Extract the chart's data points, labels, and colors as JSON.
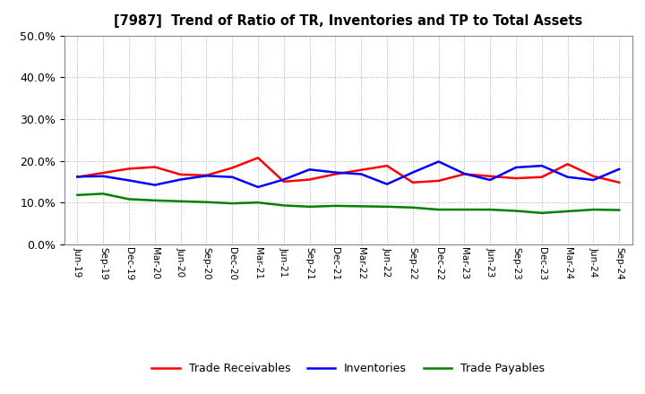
{
  "title": "[7987]  Trend of Ratio of TR, Inventories and TP to Total Assets",
  "ylim": [
    0.0,
    0.5
  ],
  "yticks": [
    0.0,
    0.1,
    0.2,
    0.3,
    0.4,
    0.5
  ],
  "background_color": "#ffffff",
  "plot_bg_color": "#ffffff",
  "grid_color": "#aaaaaa",
  "x_labels": [
    "Jun-19",
    "Sep-19",
    "Dec-19",
    "Mar-20",
    "Jun-20",
    "Sep-20",
    "Dec-20",
    "Mar-21",
    "Jun-21",
    "Sep-21",
    "Dec-21",
    "Mar-22",
    "Jun-22",
    "Sep-22",
    "Dec-22",
    "Mar-23",
    "Jun-23",
    "Sep-23",
    "Dec-23",
    "Mar-24",
    "Jun-24",
    "Sep-24"
  ],
  "trade_receivables": [
    0.161,
    0.171,
    0.181,
    0.185,
    0.167,
    0.165,
    0.183,
    0.207,
    0.15,
    0.155,
    0.168,
    0.178,
    0.188,
    0.148,
    0.152,
    0.168,
    0.163,
    0.158,
    0.161,
    0.192,
    0.163,
    0.148
  ],
  "inventories": [
    0.162,
    0.163,
    0.153,
    0.142,
    0.155,
    0.164,
    0.161,
    0.137,
    0.155,
    0.179,
    0.172,
    0.168,
    0.144,
    0.172,
    0.198,
    0.169,
    0.154,
    0.184,
    0.188,
    0.161,
    0.154,
    0.18
  ],
  "trade_payables": [
    0.118,
    0.121,
    0.108,
    0.105,
    0.103,
    0.101,
    0.098,
    0.1,
    0.093,
    0.09,
    0.092,
    0.091,
    0.09,
    0.088,
    0.083,
    0.083,
    0.083,
    0.08,
    0.075,
    0.079,
    0.083,
    0.082
  ],
  "tr_color": "#ff0000",
  "inv_color": "#0000ff",
  "tp_color": "#008000",
  "line_width": 1.8,
  "legend_labels": [
    "Trade Receivables",
    "Inventories",
    "Trade Payables"
  ]
}
